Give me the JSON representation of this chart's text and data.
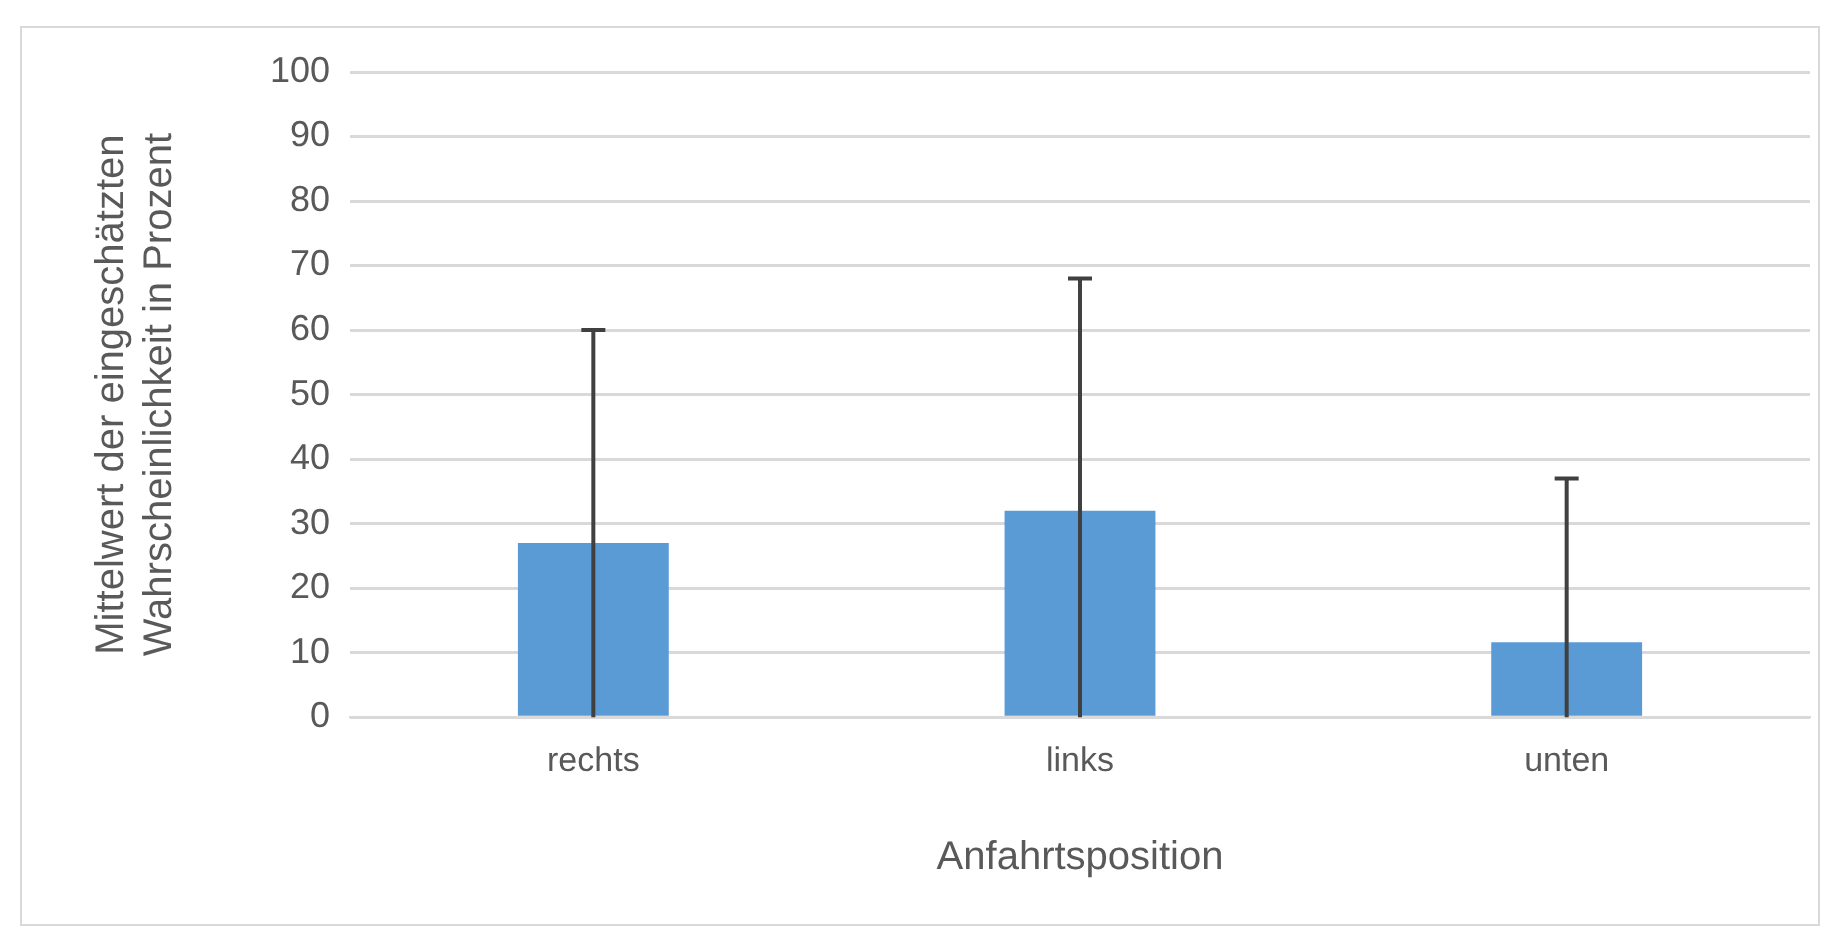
{
  "chart_data": {
    "type": "bar",
    "xlabel": "Anfahrtsposition",
    "ylabel": "Mittelwert der eingeschätzten Wahrscheinlichkeit in Prozent",
    "categories": [
      "rechts",
      "links",
      "unten"
    ],
    "values": [
      27,
      32,
      11.6
    ],
    "errors": [
      [
        0,
        60
      ],
      [
        0,
        68
      ],
      [
        0,
        37
      ]
    ],
    "color": "#5b9bd5",
    "ylim": [
      0,
      100
    ],
    "yticks": [
      0,
      10,
      20,
      30,
      40,
      50,
      60,
      70,
      80,
      90,
      100
    ],
    "grid": "y",
    "legend": false
  }
}
